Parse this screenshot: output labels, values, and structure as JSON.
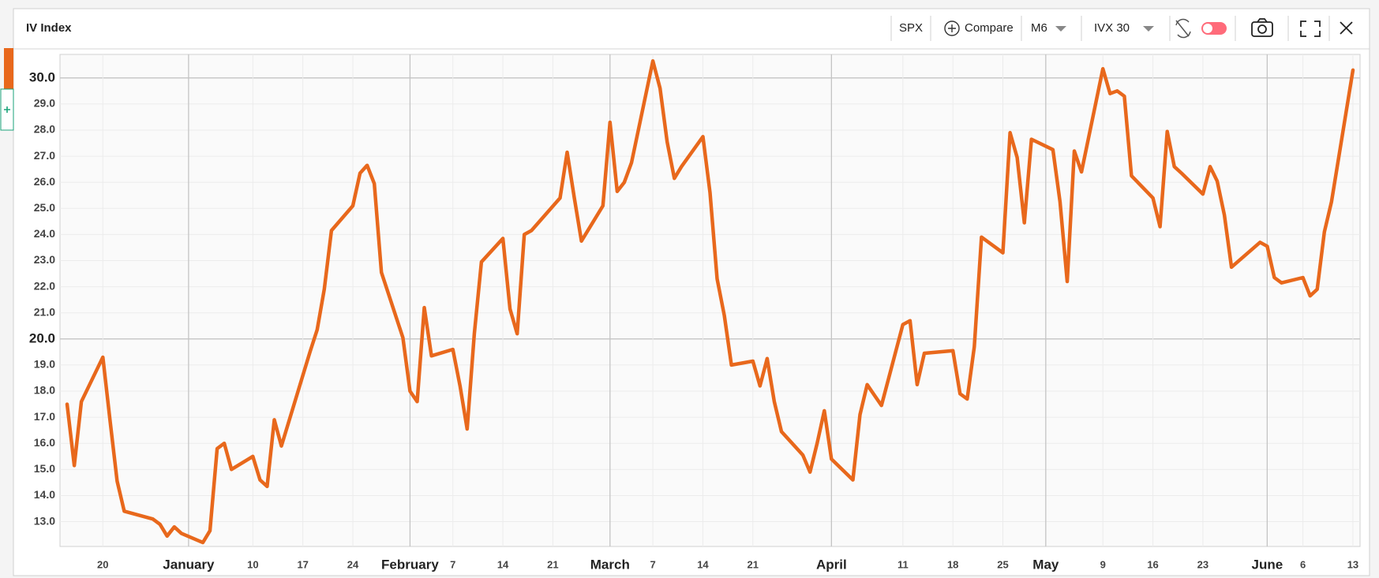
{
  "toolbar": {
    "title": "IV Index",
    "symbol": "SPX",
    "compare": "Compare",
    "period": "M6",
    "indicator": "IVX 30"
  },
  "chart_data": {
    "type": "line",
    "color": "#e8681c",
    "grid": true,
    "x": [
      "12-15",
      "12-16",
      "12-17",
      "12-20",
      "12-21",
      "12-22",
      "12-23",
      "12-27",
      "12-28",
      "12-29",
      "12-30",
      "12-31",
      "01-03",
      "01-04",
      "01-05",
      "01-06",
      "01-07",
      "01-10",
      "01-11",
      "01-12",
      "01-13",
      "01-14",
      "01-18",
      "01-19",
      "01-20",
      "01-21",
      "01-24",
      "01-25",
      "01-26",
      "01-27",
      "01-28",
      "01-31",
      "02-01",
      "02-02",
      "02-03",
      "02-04",
      "02-07",
      "02-08",
      "02-09",
      "02-10",
      "02-11",
      "02-14",
      "02-15",
      "02-16",
      "02-17",
      "02-18",
      "02-22",
      "02-23",
      "02-24",
      "02-25",
      "02-28",
      "03-01",
      "03-02",
      "03-03",
      "03-04",
      "03-07",
      "03-08",
      "03-09",
      "03-10",
      "03-11",
      "03-14",
      "03-15",
      "03-16",
      "03-17",
      "03-18",
      "03-21",
      "03-22",
      "03-23",
      "03-24",
      "03-25",
      "03-28",
      "03-29",
      "03-30",
      "03-31",
      "04-01",
      "04-04",
      "04-05",
      "04-06",
      "04-07",
      "04-08",
      "04-11",
      "04-12",
      "04-13",
      "04-14",
      "04-18",
      "04-19",
      "04-20",
      "04-21",
      "04-22",
      "04-25",
      "04-26",
      "04-27",
      "04-28",
      "04-29",
      "05-02",
      "05-03",
      "05-04",
      "05-05",
      "05-06",
      "05-09",
      "05-10",
      "05-11",
      "05-12",
      "05-13",
      "05-16",
      "05-17",
      "05-18",
      "05-19",
      "05-20",
      "05-23",
      "05-24",
      "05-25",
      "05-26",
      "05-27",
      "05-31",
      "06-01",
      "06-02",
      "06-03",
      "06-06",
      "06-07",
      "06-08",
      "06-09",
      "06-10",
      "06-13"
    ],
    "values": [
      17.5,
      15.15,
      17.6,
      19.3,
      16.9,
      14.55,
      13.4,
      13.1,
      12.9,
      12.45,
      12.8,
      12.55,
      12.2,
      12.65,
      15.8,
      16.0,
      15.0,
      15.5,
      14.6,
      14.35,
      16.9,
      15.9,
      19.5,
      20.35,
      21.9,
      24.15,
      25.1,
      26.35,
      26.65,
      25.95,
      22.55,
      20.05,
      18.0,
      17.6,
      21.2,
      19.35,
      19.6,
      18.2,
      16.55,
      20.2,
      22.95,
      23.85,
      21.15,
      20.2,
      24.0,
      24.15,
      25.4,
      27.15,
      25.4,
      23.75,
      25.1,
      28.3,
      25.65,
      26.0,
      26.75,
      30.65,
      29.6,
      27.55,
      26.15,
      26.6,
      27.75,
      25.6,
      22.3,
      20.9,
      19.0,
      19.15,
      18.2,
      19.25,
      17.6,
      16.45,
      15.55,
      14.9,
      16.0,
      17.25,
      15.4,
      14.6,
      17.1,
      18.25,
      17.85,
      17.45,
      20.55,
      20.7,
      18.25,
      19.45,
      19.55,
      17.9,
      17.7,
      19.7,
      23.9,
      23.3,
      27.9,
      26.95,
      24.45,
      27.65,
      27.25,
      25.25,
      22.2,
      27.2,
      26.4,
      30.35,
      29.4,
      29.5,
      29.3,
      26.25,
      25.4,
      24.3,
      27.95,
      26.6,
      26.35,
      25.55,
      26.6,
      26.05,
      24.75,
      22.75,
      23.7,
      23.55,
      22.35,
      22.15,
      22.35,
      21.65,
      21.9,
      24.1,
      25.25,
      30.3
    ],
    "xlim": [
      "12-14",
      "06-14"
    ],
    "xticks": [
      {
        "value": "12-20",
        "label": "20"
      },
      {
        "value": "01-01",
        "label": "January"
      },
      {
        "value": "01-10",
        "label": "10"
      },
      {
        "value": "01-17",
        "label": "17"
      },
      {
        "value": "01-24",
        "label": "24"
      },
      {
        "value": "02-01",
        "label": "February"
      },
      {
        "value": "02-07",
        "label": "7"
      },
      {
        "value": "02-14",
        "label": "14"
      },
      {
        "value": "02-21",
        "label": "21"
      },
      {
        "value": "03-01",
        "label": "March"
      },
      {
        "value": "03-07",
        "label": "7"
      },
      {
        "value": "03-14",
        "label": "14"
      },
      {
        "value": "03-21",
        "label": "21"
      },
      {
        "value": "04-01",
        "label": "April"
      },
      {
        "value": "04-11",
        "label": "11"
      },
      {
        "value": "04-18",
        "label": "18"
      },
      {
        "value": "04-25",
        "label": "25"
      },
      {
        "value": "05-01",
        "label": "May"
      },
      {
        "value": "05-09",
        "label": "9"
      },
      {
        "value": "05-16",
        "label": "16"
      },
      {
        "value": "05-23",
        "label": "23"
      },
      {
        "value": "06-01",
        "label": "June"
      },
      {
        "value": "06-06",
        "label": "6"
      },
      {
        "value": "06-13",
        "label": "13"
      }
    ],
    "ylim": [
      12.05,
      30.9
    ],
    "yticks": [
      {
        "value": 13,
        "label": "13.0"
      },
      {
        "value": 14,
        "label": "14.0"
      },
      {
        "value": 15,
        "label": "15.0"
      },
      {
        "value": 16,
        "label": "16.0"
      },
      {
        "value": 17,
        "label": "17.0"
      },
      {
        "value": 18,
        "label": "18.0"
      },
      {
        "value": 19,
        "label": "19.0"
      },
      {
        "value": 20,
        "label": "20.0"
      },
      {
        "value": 21,
        "label": "21.0"
      },
      {
        "value": 22,
        "label": "22.0"
      },
      {
        "value": 23,
        "label": "23.0"
      },
      {
        "value": 24,
        "label": "24.0"
      },
      {
        "value": 25,
        "label": "25.0"
      },
      {
        "value": 26,
        "label": "26.0"
      },
      {
        "value": 27,
        "label": "27.0"
      },
      {
        "value": 28,
        "label": "28.0"
      },
      {
        "value": 29,
        "label": "29.0"
      },
      {
        "value": 30,
        "label": "30.0"
      }
    ]
  }
}
